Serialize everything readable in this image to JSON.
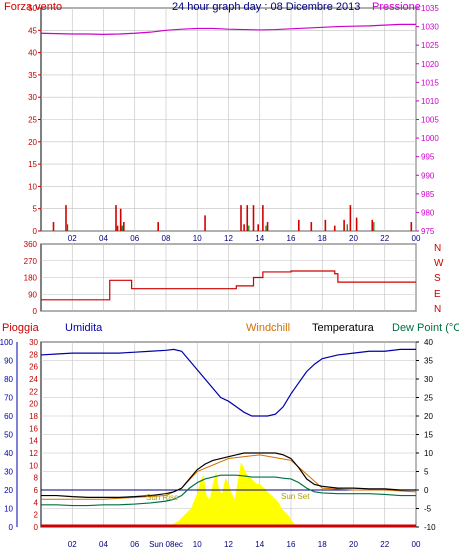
{
  "header": {
    "wind_title": "Forza vento",
    "graph_title": "24 hour graph day : 08 Dicembre 2013",
    "pressure_title": "Pressione"
  },
  "colors": {
    "wind": "#d40000",
    "pressure": "#cc00cc",
    "title_blue": "#000080",
    "direction": "#cc0000",
    "humidity": "#0000aa",
    "windchill": "#d07000",
    "temperature": "#000000",
    "dewpoint": "#007040",
    "rain": "#cc0000",
    "solar": "#ffff00",
    "solar_text": "#b0a000",
    "grid": "#c0c0c0",
    "axis_red": "#c00000",
    "axis_blue": "#0000aa"
  },
  "labels": {
    "rain": "Pioggia",
    "humidity": "Umidita",
    "windchill": "Windchill",
    "temperature": "Temperatura",
    "dewpoint": "Dew Point (°C",
    "sunrise": "Sun Rise",
    "sunset": "Sun Set"
  },
  "chart_data": [
    {
      "type": "line",
      "name": "wind-pressure",
      "x_ticks": [
        "02",
        "04",
        "06",
        "08",
        "10",
        "12",
        "14",
        "16",
        "18",
        "20",
        "22",
        "00"
      ],
      "x_range": [
        0,
        24
      ],
      "left_axis": {
        "ticks": [
          0,
          5,
          10,
          15,
          20,
          25,
          30,
          35,
          40,
          45,
          50
        ],
        "ylim": [
          0,
          50
        ]
      },
      "right_axis": {
        "ticks": [
          975,
          980,
          985,
          990,
          995,
          1000,
          1005,
          1010,
          1015,
          1020,
          1025,
          1030,
          1035
        ],
        "ylim": [
          975,
          1035
        ]
      },
      "pressure": {
        "x": [
          0,
          1,
          2,
          3,
          4,
          5,
          6,
          7,
          8,
          9,
          10,
          11,
          12,
          13,
          14,
          15,
          16,
          17,
          18,
          19,
          20,
          21,
          22,
          23,
          24
        ],
        "y": [
          1028.2,
          1028.1,
          1028.0,
          1028.0,
          1027.9,
          1028.0,
          1028.2,
          1028.5,
          1029.0,
          1029.3,
          1029.5,
          1029.5,
          1029.3,
          1029.2,
          1029.1,
          1029.2,
          1029.4,
          1029.6,
          1029.8,
          1030.0,
          1030.1,
          1030.2,
          1030.4,
          1030.6,
          1030.6
        ]
      },
      "gust_spikes": {
        "x": [
          0.8,
          1.6,
          4.8,
          4.9,
          5.1,
          5.3,
          7.5,
          10.5,
          12.8,
          13.0,
          13.2,
          13.6,
          13.9,
          14.2,
          14.5,
          16.5,
          17.3,
          18.2,
          18.8,
          19.4,
          19.8,
          20.2,
          21.2,
          23.7
        ],
        "y": [
          2.0,
          5.8,
          5.8,
          1.2,
          5.0,
          2.0,
          2.0,
          3.5,
          5.8,
          1.5,
          5.8,
          5.8,
          1.5,
          5.8,
          2.0,
          2.5,
          2.0,
          2.5,
          1.2,
          2.5,
          5.8,
          3.0,
          2.5,
          2.0
        ]
      },
      "avg_spikes": {
        "x": [
          1.7,
          5.2,
          13.3,
          14.4,
          19.6,
          21.3
        ],
        "y": [
          1.5,
          1.2,
          1.2,
          1.2,
          1.5,
          2.0
        ]
      }
    },
    {
      "type": "line",
      "name": "wind-direction",
      "y_ticks": [
        0,
        90,
        180,
        270,
        360
      ],
      "ylim": [
        0,
        360
      ],
      "directions": [
        "N",
        "W",
        "S",
        "E",
        "N"
      ],
      "x": [
        0,
        4.4,
        4.4,
        5.8,
        5.8,
        12.5,
        12.5,
        13.6,
        13.6,
        14.2,
        14.2,
        16.0,
        16.0,
        18.8,
        18.8,
        19.0,
        19.0,
        24
      ],
      "y": [
        60,
        60,
        165,
        165,
        120,
        120,
        135,
        135,
        180,
        180,
        210,
        210,
        215,
        215,
        200,
        200,
        155,
        155
      ]
    },
    {
      "type": "line",
      "name": "temp-humidity",
      "x_ticks": [
        "02",
        "04",
        "06",
        "08",
        "10",
        "12",
        "14",
        "16",
        "18",
        "20",
        "22",
        "00"
      ],
      "sunrise_label_tick": "Sun 08ec",
      "x_range": [
        0,
        24
      ],
      "humidity_axis": {
        "ticks": [
          0,
          10,
          20,
          30,
          40,
          50,
          60,
          70,
          80,
          90,
          100
        ],
        "ylim": [
          0,
          100
        ]
      },
      "rain_axis": {
        "ticks": [
          0,
          2,
          4,
          6,
          8,
          10,
          12,
          14,
          16,
          18,
          20,
          22,
          24,
          26,
          28,
          30
        ],
        "ylim": [
          0,
          30
        ]
      },
      "temp_axis": {
        "ticks": [
          -10,
          -5,
          0,
          5,
          10,
          15,
          20,
          25,
          30,
          35,
          40
        ],
        "ylim": [
          -10,
          40
        ]
      },
      "humidity": {
        "x": [
          0,
          1,
          2,
          3,
          4,
          5,
          6,
          7,
          8,
          8.5,
          9,
          9.5,
          10,
          10.5,
          11,
          11.5,
          12,
          12.5,
          13,
          13.5,
          14,
          14.5,
          15,
          15.5,
          16,
          16.5,
          17,
          17.5,
          18,
          19,
          20,
          21,
          22,
          23,
          24
        ],
        "y": [
          93,
          93.5,
          94,
          94,
          94,
          94,
          94.5,
          95,
          95.5,
          96,
          95,
          90,
          85,
          80,
          75,
          70,
          68,
          65,
          62,
          60,
          60,
          60,
          61,
          65,
          72,
          78,
          84,
          88,
          91,
          93,
          94,
          95,
          95,
          96,
          96
        ]
      },
      "temperature": {
        "x": [
          0,
          1,
          2,
          3,
          4,
          5,
          6,
          7,
          8,
          8.5,
          9,
          9.5,
          10,
          10.5,
          11,
          11.5,
          12,
          12.5,
          13,
          13.5,
          14,
          14.5,
          15,
          15.5,
          16,
          16.5,
          17,
          17.5,
          18,
          19,
          20,
          21,
          22,
          23,
          24
        ],
        "y": [
          -1.5,
          -1.5,
          -1.8,
          -2.0,
          -2.0,
          -2.0,
          -1.8,
          -1.5,
          -1.0,
          -0.5,
          0.5,
          3.0,
          5.5,
          7.0,
          8.0,
          8.5,
          9.0,
          9.5,
          10.0,
          10.0,
          10.0,
          10.0,
          10.0,
          9.5,
          8.5,
          6.0,
          3.0,
          1.5,
          1.0,
          0.5,
          0.5,
          0.3,
          0.3,
          0.0,
          0.0
        ]
      },
      "dewpoint": {
        "x": [
          0,
          1,
          2,
          3,
          4,
          5,
          6,
          7,
          8,
          8.5,
          9,
          9.5,
          10,
          10.5,
          11,
          11.5,
          12,
          12.5,
          13,
          13.5,
          14,
          14.5,
          15,
          15.5,
          16,
          16.5,
          17,
          17.5,
          18,
          19,
          20,
          21,
          22,
          23,
          24
        ],
        "y": [
          -4.0,
          -4.0,
          -4.2,
          -4.2,
          -4.0,
          -4.0,
          -3.8,
          -3.5,
          -3.0,
          -2.5,
          -1.5,
          0.5,
          2.0,
          3.0,
          3.5,
          4.0,
          4.0,
          4.0,
          3.8,
          3.5,
          3.5,
          3.5,
          3.5,
          3.2,
          3.0,
          2.0,
          0.5,
          -0.5,
          -0.8,
          -1.0,
          -1.0,
          -1.0,
          -1.2,
          -1.5,
          -1.5
        ]
      },
      "windchill": {
        "x": [
          0,
          4,
          8,
          9,
          10,
          12,
          14,
          16,
          18,
          20,
          22,
          24
        ],
        "y": [
          -2.5,
          -2.5,
          -1.5,
          0.5,
          5.0,
          8.5,
          9.5,
          8.0,
          0.5,
          0.0,
          0.0,
          -0.5
        ]
      },
      "threshold_temp": 0,
      "solar": {
        "x": [
          8.2,
          8.4,
          8.8,
          9.2,
          9.6,
          10.0,
          10.2,
          10.4,
          10.6,
          10.8,
          11.0,
          11.2,
          11.4,
          11.6,
          11.8,
          12.0,
          12.2,
          12.4,
          12.6,
          12.8,
          13.0,
          13.2,
          13.4,
          13.6,
          13.8,
          14.0,
          14.2,
          14.4,
          14.6,
          14.8,
          15.0,
          15.2,
          15.4,
          15.6,
          15.8,
          16.0,
          16.2,
          16.4
        ],
        "y": [
          0.2,
          0.4,
          1.0,
          2.0,
          3.0,
          5.5,
          7.5,
          8.5,
          5.0,
          4.5,
          7.0,
          9.0,
          6.0,
          5.5,
          8.0,
          7.0,
          5.5,
          4.5,
          7.5,
          10.5,
          9.5,
          8.5,
          8.0,
          7.5,
          7.0,
          7.0,
          6.5,
          6.0,
          5.5,
          5.0,
          4.5,
          4.0,
          3.0,
          2.5,
          2.0,
          1.2,
          0.5,
          0.2
        ]
      },
      "rain": {
        "x": [
          0,
          24
        ],
        "y": [
          0,
          0
        ]
      }
    }
  ]
}
